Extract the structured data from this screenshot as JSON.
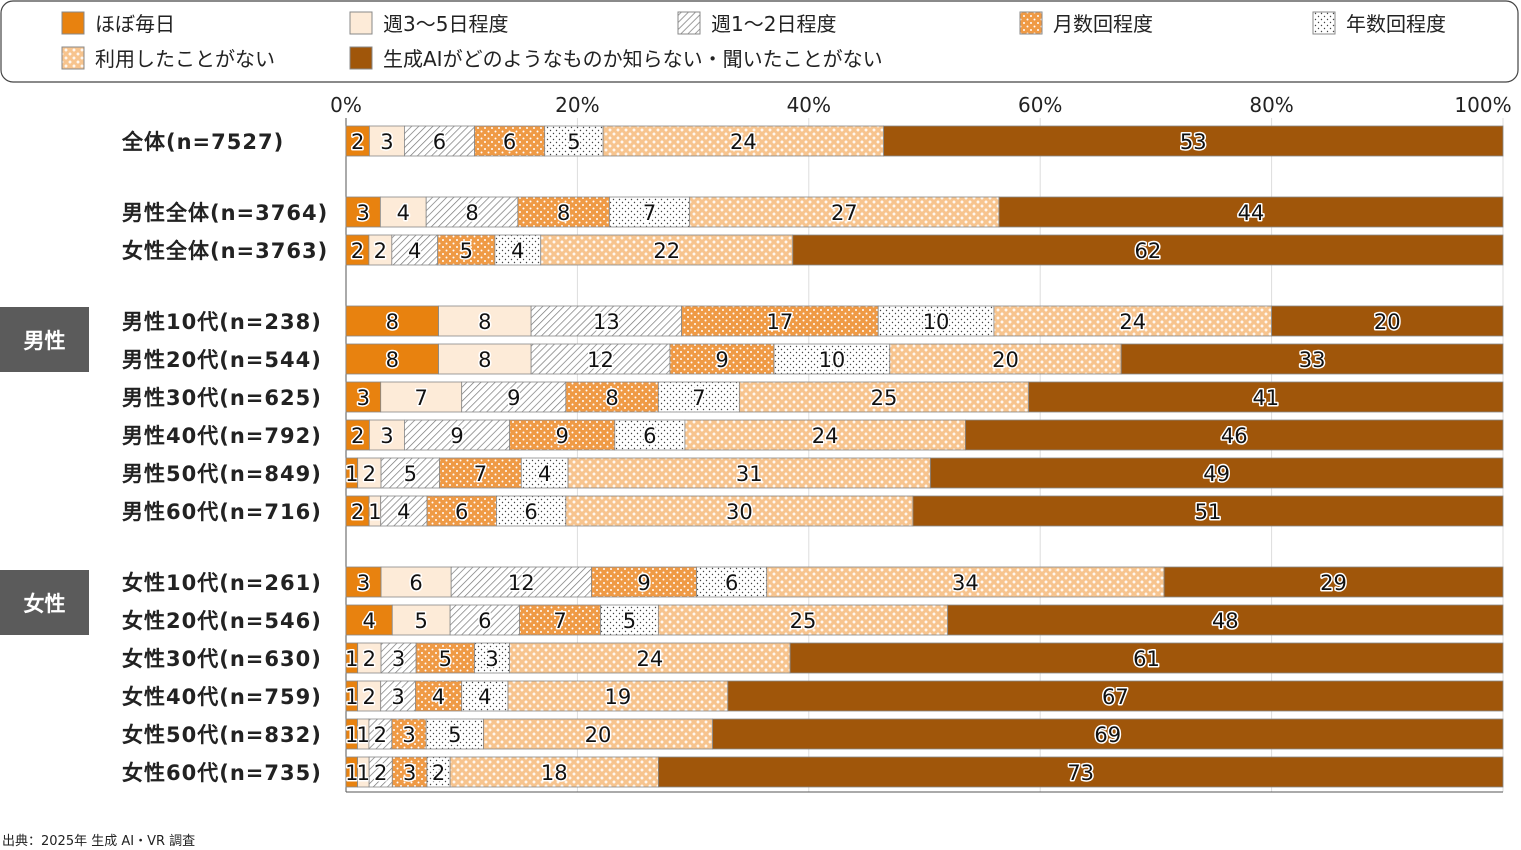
{
  "chart_data": {
    "type": "bar",
    "orientation": "horizontal",
    "stacked": true,
    "xlim": [
      0,
      100
    ],
    "x_ticks": [
      "0%",
      "20%",
      "40%",
      "60%",
      "80%",
      "100%"
    ],
    "grid": true,
    "legend_position": "top",
    "series": [
      {
        "name": "ほぼ毎日",
        "color": "#e8820f",
        "pattern": "solid"
      },
      {
        "name": "週3〜5日程度",
        "color": "#fdebd8",
        "pattern": "solid"
      },
      {
        "name": "週1〜2日程度",
        "color": "#ffffff",
        "pattern": "hatch"
      },
      {
        "name": "月数回程度",
        "color": "#ef9a45",
        "pattern": "dots-white"
      },
      {
        "name": "年数回程度",
        "color": "#ffffff",
        "pattern": "dots-dark"
      },
      {
        "name": "利用したことがない",
        "color": "#f7c48e",
        "pattern": "cross-white"
      },
      {
        "name": "生成AIがどのようなものか知らない・聞いたことがない",
        "color": "#a0560a",
        "pattern": "solid"
      }
    ],
    "groups": [
      {
        "label": "男性",
        "rows": [
          3,
          8
        ]
      },
      {
        "label": "女性",
        "rows": [
          9,
          14
        ]
      }
    ],
    "rows": [
      {
        "label": "全体(n=7527)",
        "values": [
          2,
          3,
          6,
          6,
          5,
          24,
          53
        ]
      },
      {
        "label": "男性全体(n=3764)",
        "values": [
          3,
          4,
          8,
          8,
          7,
          27,
          44
        ]
      },
      {
        "label": "女性全体(n=3763)",
        "values": [
          2,
          2,
          4,
          5,
          4,
          22,
          62
        ]
      },
      {
        "label": "男性10代(n=238)",
        "values": [
          8,
          8,
          13,
          17,
          10,
          24,
          20
        ]
      },
      {
        "label": "男性20代(n=544)",
        "values": [
          8,
          8,
          12,
          9,
          10,
          20,
          33
        ]
      },
      {
        "label": "男性30代(n=625)",
        "values": [
          3,
          7,
          9,
          8,
          7,
          25,
          41
        ]
      },
      {
        "label": "男性40代(n=792)",
        "values": [
          2,
          3,
          9,
          9,
          6,
          24,
          46
        ]
      },
      {
        "label": "男性50代(n=849)",
        "values": [
          1,
          2,
          5,
          7,
          4,
          31,
          49
        ]
      },
      {
        "label": "男性60代(n=716)",
        "values": [
          2,
          1,
          4,
          6,
          6,
          30,
          51
        ]
      },
      {
        "label": "女性10代(n=261)",
        "values": [
          3,
          6,
          12,
          9,
          6,
          34,
          29
        ]
      },
      {
        "label": "女性20代(n=546)",
        "values": [
          4,
          5,
          6,
          7,
          5,
          25,
          48
        ]
      },
      {
        "label": "女性30代(n=630)",
        "values": [
          1,
          2,
          3,
          5,
          3,
          24,
          61
        ]
      },
      {
        "label": "女性40代(n=759)",
        "values": [
          1,
          2,
          3,
          4,
          4,
          19,
          67
        ]
      },
      {
        "label": "女性50代(n=832)",
        "values": [
          1,
          1,
          2,
          3,
          5,
          20,
          69
        ]
      },
      {
        "label": "女性60代(n=735)",
        "values": [
          1,
          1,
          2,
          3,
          2,
          18,
          73
        ]
      }
    ],
    "source": "出典：2025年 生成 AI・VR 調査"
  }
}
